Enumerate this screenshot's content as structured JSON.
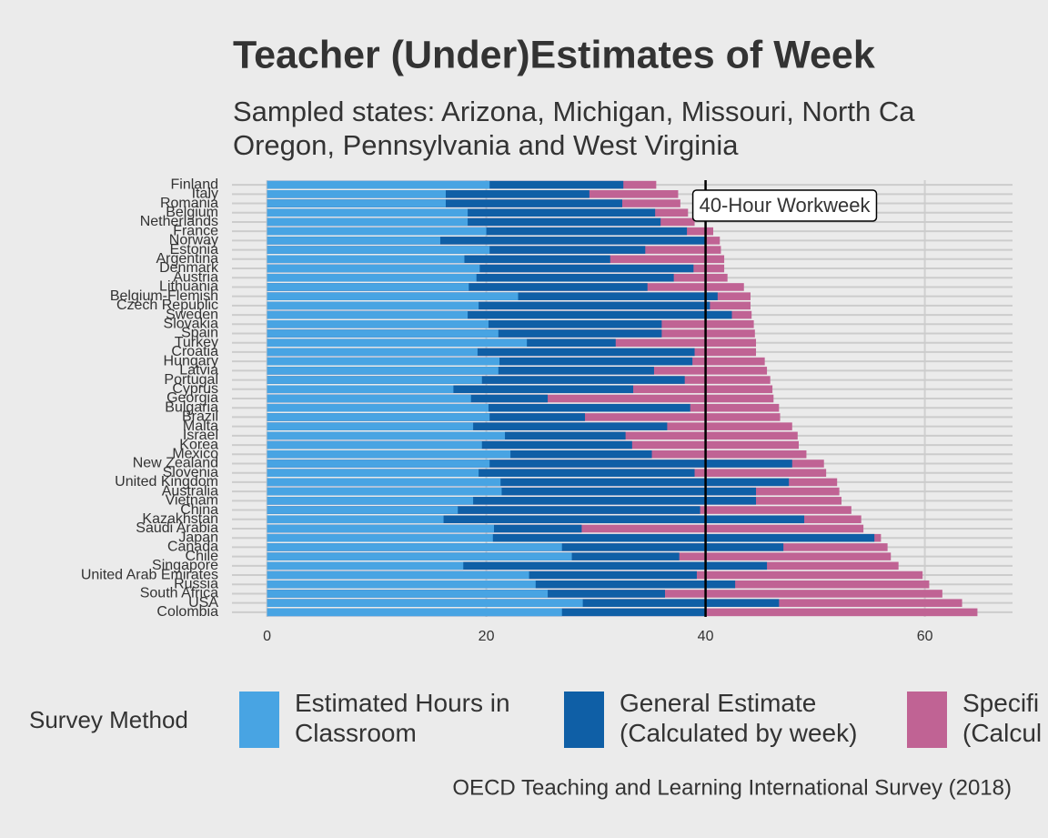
{
  "chart_data": {
    "type": "overlap-bar",
    "title": "Teacher (Under)Estimates of Week",
    "subtitle": [
      "Sampled states: Arizona, Michigan, Missouri, North Ca",
      "Oregon, Pennsylvania and West Virginia"
    ],
    "caption": "OECD Teaching and Learning International Survey (2018)",
    "legend_title": "Survey Method",
    "reference_line": {
      "value": 40,
      "label": "40-Hour Workweek"
    },
    "categories": [
      "Finland",
      "Italy",
      "Romania",
      "Belgium",
      "Netherlands",
      "France",
      "Norway",
      "Estonia",
      "Argentina",
      "Denmark",
      "Austria",
      "Lithuania",
      "Belgium-Flemish",
      "Czech Republic",
      "Sweden",
      "Slovakia",
      "Spain",
      "Turkey",
      "Croatia",
      "Hungary",
      "Latvia",
      "Portugal",
      "Cyprus",
      "Georgia",
      "Bulgaria",
      "Brazil",
      "Malta",
      "Israel",
      "Korea",
      "Mexico",
      "New Zealand",
      "Slovenia",
      "United Kingdom",
      "Australia",
      "Vietnam",
      "China",
      "Kazakhstan",
      "Saudi Arabia",
      "Japan",
      "Canada",
      "Chile",
      "Singapore",
      "United Arab Emirates",
      "Russia",
      "South Africa",
      "USA",
      "Colombia"
    ],
    "series": [
      {
        "name": "Specifi\n(Calcul",
        "color": "#c06394",
        "values": [
          35.5,
          37.5,
          37.7,
          38.4,
          39.0,
          40.7,
          41.3,
          41.4,
          41.7,
          41.7,
          42.0,
          43.5,
          44.1,
          44.1,
          44.2,
          44.4,
          44.5,
          44.6,
          44.6,
          45.4,
          45.6,
          45.9,
          46.1,
          46.2,
          46.7,
          46.8,
          47.9,
          48.4,
          48.5,
          49.2,
          50.8,
          51.0,
          52.0,
          52.2,
          52.4,
          53.3,
          54.2,
          54.4,
          56.0,
          56.6,
          56.9,
          57.6,
          59.8,
          60.4,
          61.6,
          63.4,
          64.8
        ]
      },
      {
        "name": "General Estimate\n(Calculated by week)",
        "color": "#0f5fa6",
        "values": [
          32.5,
          29.4,
          32.4,
          35.4,
          35.9,
          38.3,
          40.0,
          34.5,
          31.3,
          38.9,
          37.1,
          34.7,
          41.1,
          40.4,
          42.4,
          36.0,
          36.0,
          31.8,
          39.0,
          38.8,
          35.3,
          38.1,
          33.4,
          25.6,
          38.6,
          29.0,
          36.5,
          32.7,
          33.3,
          35.1,
          47.9,
          39.0,
          47.6,
          44.6,
          44.6,
          39.5,
          49.0,
          28.7,
          55.4,
          47.1,
          37.6,
          45.6,
          39.2,
          42.7,
          36.3,
          46.7,
          40.0
        ]
      },
      {
        "name": "Estimated Hours in\nClassroom",
        "color": "#48a4e3",
        "values": [
          20.3,
          16.3,
          16.3,
          18.3,
          18.3,
          20.0,
          15.8,
          20.3,
          18.0,
          19.4,
          19.1,
          18.4,
          22.9,
          19.3,
          18.3,
          20.2,
          21.1,
          23.7,
          19.2,
          21.2,
          21.1,
          19.6,
          17.0,
          18.6,
          20.2,
          20.3,
          18.8,
          21.7,
          19.6,
          22.2,
          20.3,
          19.3,
          21.3,
          21.4,
          18.8,
          17.4,
          16.1,
          20.7,
          20.6,
          26.9,
          27.8,
          17.9,
          23.9,
          24.5,
          25.6,
          28.8,
          26.9
        ]
      }
    ],
    "legend_order": [
      2,
      1,
      0
    ],
    "xlim": [
      -3.2,
      68
    ],
    "xticks": [
      0,
      20,
      40,
      60
    ],
    "grid": true
  }
}
